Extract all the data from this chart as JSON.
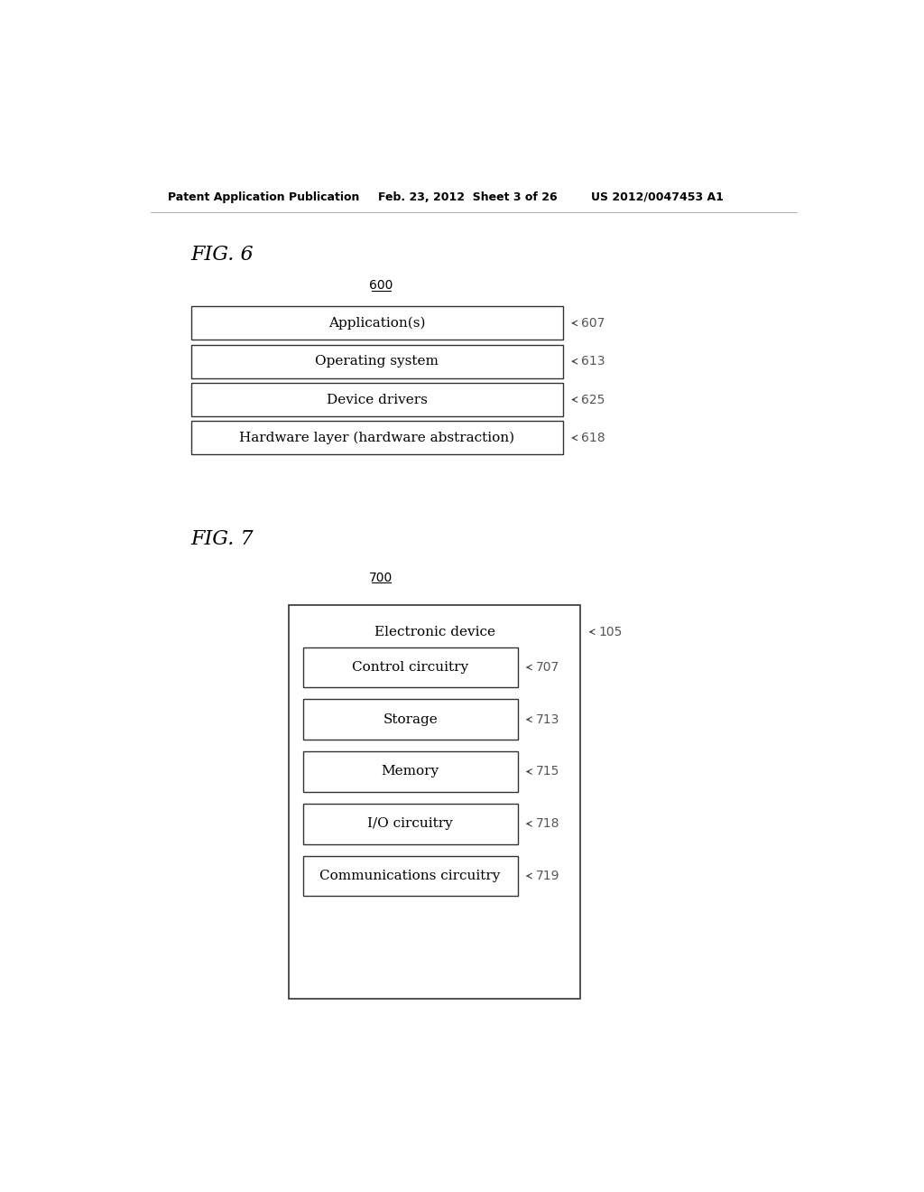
{
  "header_left": "Patent Application Publication",
  "header_mid": "Feb. 23, 2012  Sheet 3 of 26",
  "header_right": "US 2012/0047453 A1",
  "fig6_label": "FIG. 6",
  "fig6_ref": "600",
  "fig6_boxes": [
    {
      "label": "Application(s)",
      "ref": "607"
    },
    {
      "label": "Operating system",
      "ref": "613"
    },
    {
      "label": "Device drivers",
      "ref": "625"
    },
    {
      "label": "Hardware layer (hardware abstraction)",
      "ref": "618"
    }
  ],
  "fig7_label": "FIG. 7",
  "fig7_ref": "700",
  "fig7_outer_label": "Electronic device",
  "fig7_outer_ref": "105",
  "fig7_boxes": [
    {
      "label": "Control circuitry",
      "ref": "707"
    },
    {
      "label": "Storage",
      "ref": "713"
    },
    {
      "label": "Memory",
      "ref": "715"
    },
    {
      "label": "I/O circuitry",
      "ref": "718"
    },
    {
      "label": "Communications circuitry",
      "ref": "719"
    }
  ],
  "bg_color": "#ffffff",
  "box_edge_color": "#333333",
  "text_color": "#000000",
  "ref_color": "#555555"
}
